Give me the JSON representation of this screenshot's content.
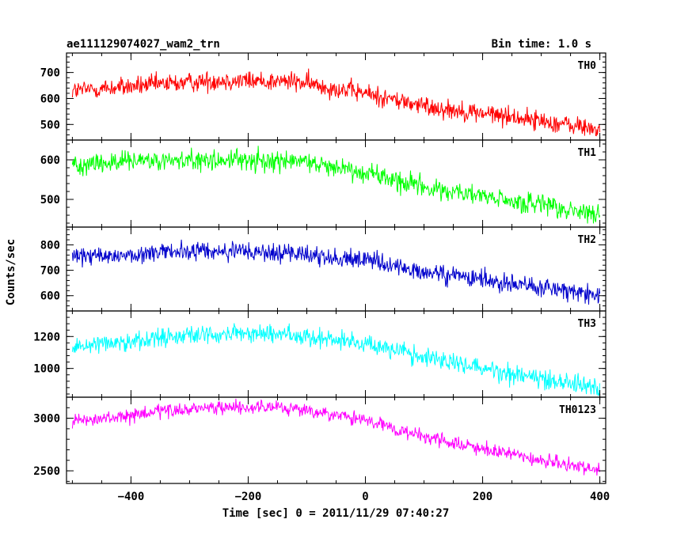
{
  "chart_data": {
    "type": "line",
    "title": "ae111129074027_wam2_trn",
    "bin_time_label": "Bin time: 1.0 s",
    "xlabel": "Time [sec] 0 = 2011/11/29 07:40:27",
    "ylabel": "Counts/sec",
    "xlim": [
      -510,
      410
    ],
    "x_ticks": [
      -400,
      -200,
      0,
      200,
      400
    ],
    "x_tick_labels": [
      "−400",
      "−200",
      "0",
      "200",
      "400"
    ],
    "x_range_data": [
      -500,
      400
    ],
    "bin_time_sec": 1.0,
    "grid": false,
    "panels": [
      {
        "name": "TH0",
        "color": "#ff0000",
        "ylim": [
          440,
          775
        ],
        "y_ticks": [
          500,
          600,
          700
        ],
        "y_tick_labels": [
          "500",
          "600",
          "700"
        ],
        "trend": [
          [
            -500,
            630
          ],
          [
            -250,
            670
          ],
          [
            -120,
            665
          ],
          [
            0,
            620
          ],
          [
            100,
            570
          ],
          [
            250,
            530
          ],
          [
            400,
            480
          ]
        ],
        "noise_amplitude": 35
      },
      {
        "name": "TH1",
        "color": "#00ff00",
        "ylim": [
          430,
          650
        ],
        "y_ticks": [
          500,
          600
        ],
        "y_tick_labels": [
          "500",
          "600"
        ],
        "trend": [
          [
            -500,
            590
          ],
          [
            -250,
            600
          ],
          [
            -100,
            595
          ],
          [
            0,
            570
          ],
          [
            100,
            530
          ],
          [
            250,
            495
          ],
          [
            400,
            460
          ]
        ],
        "noise_amplitude": 25
      },
      {
        "name": "TH2",
        "color": "#0000cc",
        "ylim": [
          540,
          870
        ],
        "y_ticks": [
          600,
          700,
          800
        ],
        "y_tick_labels": [
          "600",
          "700",
          "800"
        ],
        "trend": [
          [
            -500,
            750
          ],
          [
            -300,
            775
          ],
          [
            -150,
            770
          ],
          [
            0,
            740
          ],
          [
            100,
            690
          ],
          [
            250,
            650
          ],
          [
            400,
            600
          ]
        ],
        "noise_amplitude": 35
      },
      {
        "name": "TH3",
        "color": "#00ffff",
        "ylim": [
          820,
          1360
        ],
        "y_ticks": [
          1000,
          1200
        ],
        "y_tick_labels": [
          "1000",
          "1200"
        ],
        "trend": [
          [
            -500,
            1140
          ],
          [
            -300,
            1210
          ],
          [
            -150,
            1220
          ],
          [
            0,
            1160
          ],
          [
            100,
            1070
          ],
          [
            250,
            970
          ],
          [
            400,
            880
          ]
        ],
        "noise_amplitude": 55
      },
      {
        "name": "TH0123",
        "color": "#ff00ff",
        "ylim": [
          2380,
          3200
        ],
        "y_ticks": [
          2500,
          3000
        ],
        "y_tick_labels": [
          "2500",
          "3000"
        ],
        "trend": [
          [
            -500,
            2960
          ],
          [
            -300,
            3090
          ],
          [
            -150,
            3110
          ],
          [
            0,
            2980
          ],
          [
            100,
            2820
          ],
          [
            250,
            2650
          ],
          [
            400,
            2500
          ]
        ],
        "noise_amplitude": 60
      }
    ]
  }
}
